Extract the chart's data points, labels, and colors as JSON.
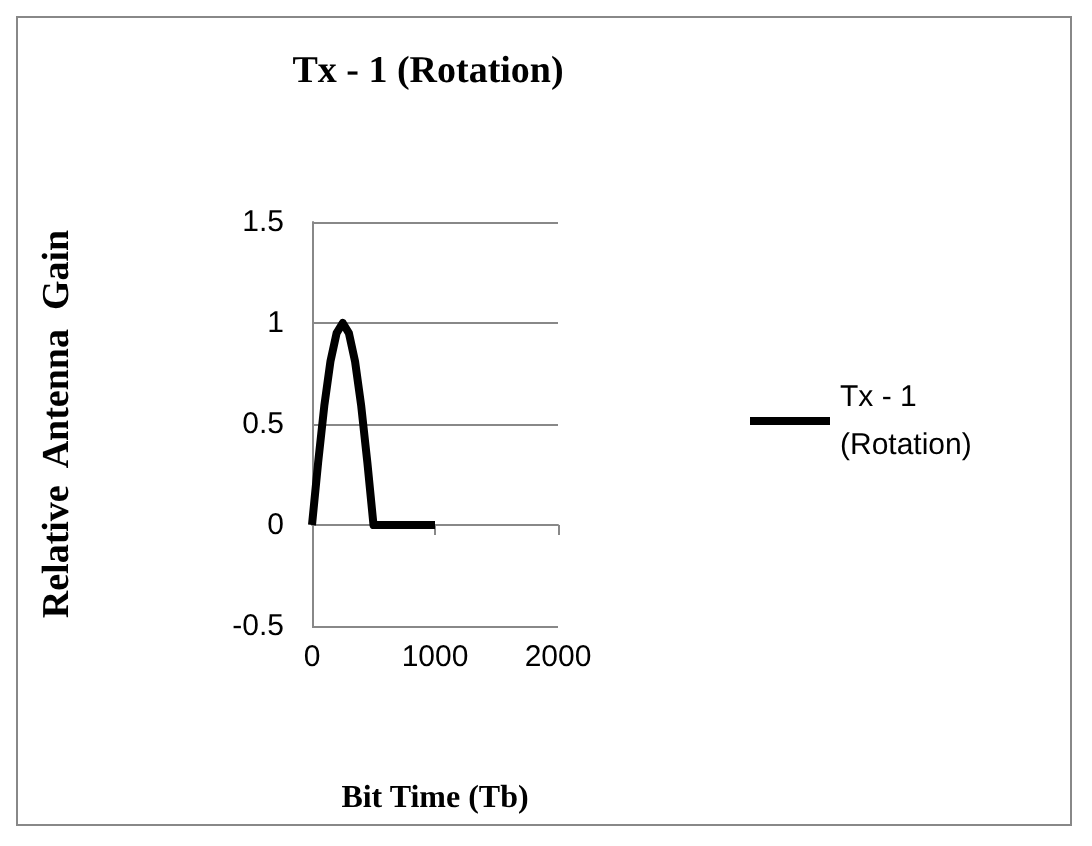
{
  "chart_data": {
    "type": "line",
    "title": "Tx - 1 (Rotation)",
    "xlabel": "Bit Time (Tb)",
    "ylabel": "Relative  Antenna  Gain",
    "x": [
      0,
      50,
      100,
      150,
      200,
      250,
      300,
      350,
      400,
      450,
      500,
      1000
    ],
    "series": [
      {
        "name": "Tx - 1 (Rotation)",
        "color": "#000000",
        "values": [
          0,
          0.31,
          0.59,
          0.81,
          0.95,
          1,
          0.95,
          0.81,
          0.59,
          0.31,
          0,
          0
        ]
      }
    ],
    "xlim": [
      0,
      2000
    ],
    "xticks": [
      0,
      1000,
      2000
    ],
    "ylim": [
      -0.5,
      1.5
    ],
    "yticks": [
      -0.5,
      0,
      0.5,
      1,
      1.5
    ],
    "grid": "y",
    "legend": "right",
    "marker": "none",
    "line_style": "solid"
  }
}
